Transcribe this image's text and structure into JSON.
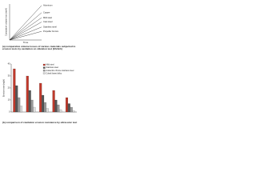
{
  "chart_data": [
    {
      "type": "line",
      "caption": "(a) comparative volume losses of various materials subjected to erosion tests by cavitation on vibration test (Ehrlich)",
      "x_label": "Time",
      "y_label": "Cumulative volume loss (mm³)",
      "xlim": [
        0,
        10
      ],
      "ylim": [
        0,
        10
      ],
      "series": [
        {
          "name": "Aluminum",
          "color": "#222222",
          "x": [
            0,
            10
          ],
          "values": [
            0,
            9.6
          ]
        },
        {
          "name": "Copper",
          "color": "#222222",
          "x": [
            0,
            10
          ],
          "values": [
            0,
            7.6
          ]
        },
        {
          "name": "Mild steel",
          "color": "#222222",
          "x": [
            0,
            10
          ],
          "values": [
            0,
            6.2
          ]
        },
        {
          "name": "Cast steel",
          "color": "#222222",
          "x": [
            0,
            10
          ],
          "values": [
            0,
            5.0
          ]
        },
        {
          "name": "Stainless steel",
          "color": "#222222",
          "x": [
            0,
            10
          ],
          "values": [
            0,
            3.6
          ]
        },
        {
          "name": "Propeller bronze",
          "color": "#222222",
          "x": [
            0,
            10
          ],
          "values": [
            0,
            2.4
          ]
        }
      ]
    },
    {
      "type": "bar",
      "caption": "(b) comparison of cavitation erosion resistance by ultrasonic test",
      "y_label": "Erosion rate (mg/h)",
      "categories": [
        null,
        null,
        null,
        null,
        null
      ],
      "ylim": [
        0,
        40
      ],
      "yticks": [
        0,
        10,
        20,
        30,
        40
      ],
      "series": [
        {
          "name": "Mild steel",
          "color": "#c0392b",
          "values": [
            36,
            30,
            24,
            18,
            12
          ]
        },
        {
          "name": "Stainless steel",
          "color": "#555555",
          "values": [
            22,
            18,
            14,
            10,
            7
          ]
        },
        {
          "name": "Austenitic-chrome stainless steel",
          "color": "#999999",
          "values": [
            12,
            10,
            8,
            6,
            4
          ]
        },
        {
          "name": "Cobalt based alloy",
          "color": "#dddddd",
          "values": [
            5,
            4,
            3,
            2,
            1
          ]
        }
      ]
    }
  ]
}
